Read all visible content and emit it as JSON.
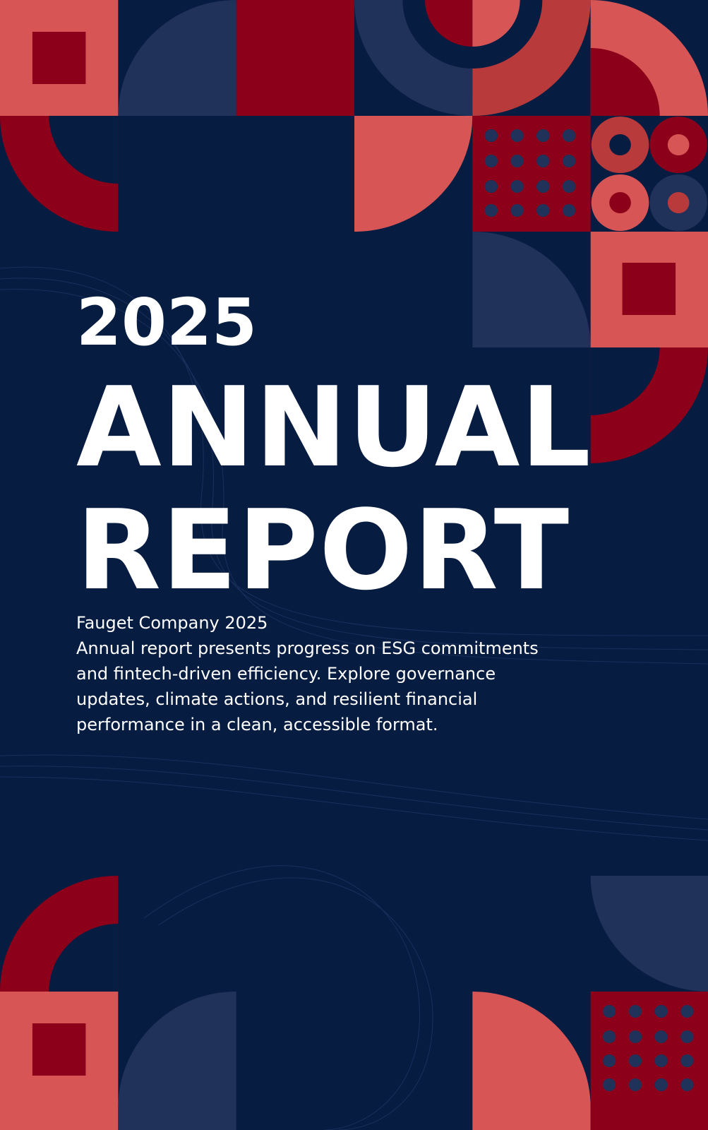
{
  "cover": {
    "year": "2025",
    "title_line_1": "ANNUAL",
    "title_line_2": "REPORT",
    "company": "Fauget Company 2025",
    "description": "Annual report presents progress on ESG commitments and fintech-driven efficiency. Explore governance updates, climate actions, and resilient financial performance in a clean, accessible format."
  }
}
